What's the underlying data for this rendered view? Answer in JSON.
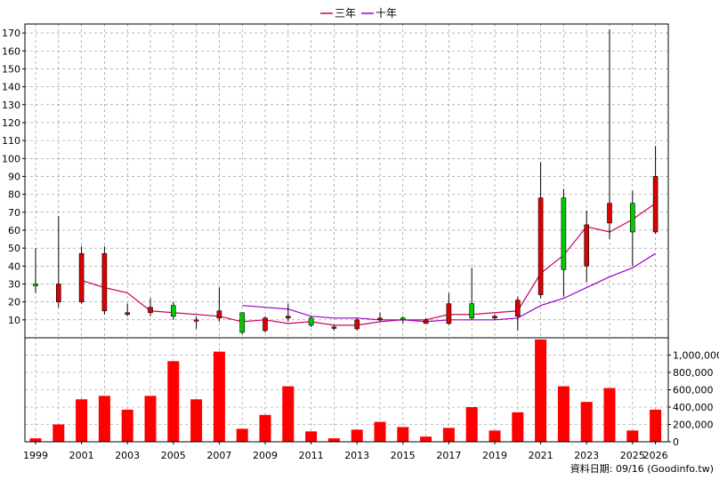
{
  "legend": {
    "items": [
      {
        "label": "三年",
        "color": "#cc0066"
      },
      {
        "label": "十年",
        "color": "#9900cc"
      }
    ]
  },
  "source_note": "資料日期: 09/16 (Goodinfo.tw)",
  "colors": {
    "up_candle": "#dd0000",
    "down_candle": "#00cc00",
    "volume_bar": "#ff0000",
    "grid": "#888888",
    "ma3": "#cc0066",
    "ma10": "#9900cc"
  },
  "chart_data": [
    {
      "type": "candlestick",
      "title": "",
      "xlabel": "",
      "ylabel": "",
      "ylim": [
        0,
        175
      ],
      "y_ticks": [
        10,
        20,
        30,
        40,
        50,
        60,
        70,
        80,
        90,
        100,
        110,
        120,
        130,
        140,
        150,
        160,
        170
      ],
      "grid": true,
      "legend_position": "top-center",
      "candles": [
        {
          "year": 1999,
          "open": 30,
          "close": 29,
          "high": 50,
          "low": 25
        },
        {
          "year": 2000,
          "open": 20,
          "close": 30,
          "high": 68,
          "low": 17
        },
        {
          "year": 2001,
          "open": 20,
          "close": 47,
          "high": 51,
          "low": 19
        },
        {
          "year": 2002,
          "open": 15,
          "close": 47,
          "high": 51,
          "low": 13
        },
        {
          "year": 2003,
          "open": 13,
          "close": 14,
          "high": 19,
          "low": 12
        },
        {
          "year": 2004,
          "open": 14,
          "close": 17,
          "high": 22,
          "low": 12
        },
        {
          "year": 2005,
          "open": 18,
          "close": 12,
          "high": 20,
          "low": 10
        },
        {
          "year": 2006,
          "open": 10,
          "close": 10,
          "high": 12,
          "low": 5
        },
        {
          "year": 2007,
          "open": 11,
          "close": 15,
          "high": 28,
          "low": 9
        },
        {
          "year": 2008,
          "open": 14,
          "close": 3,
          "high": 14,
          "low": 2
        },
        {
          "year": 2009,
          "open": 4,
          "close": 11,
          "high": 12,
          "low": 3
        },
        {
          "year": 2010,
          "open": 11,
          "close": 12,
          "high": 19,
          "low": 9
        },
        {
          "year": 2011,
          "open": 11,
          "close": 7,
          "high": 12,
          "low": 6
        },
        {
          "year": 2012,
          "open": 6,
          "close": 6,
          "high": 7,
          "low": 4
        },
        {
          "year": 2013,
          "open": 5,
          "close": 10,
          "high": 11,
          "low": 4
        },
        {
          "year": 2014,
          "open": 10,
          "close": 11,
          "high": 14,
          "low": 9
        },
        {
          "year": 2015,
          "open": 11,
          "close": 10,
          "high": 12,
          "low": 8
        },
        {
          "year": 2016,
          "open": 8,
          "close": 10,
          "high": 11,
          "low": 8
        },
        {
          "year": 2017,
          "open": 8,
          "close": 19,
          "high": 25,
          "low": 7
        },
        {
          "year": 2018,
          "open": 19,
          "close": 11,
          "high": 39,
          "low": 10
        },
        {
          "year": 2019,
          "open": 11,
          "close": 12,
          "high": 13,
          "low": 10
        },
        {
          "year": 2020,
          "open": 12,
          "close": 21,
          "high": 23,
          "low": 4
        },
        {
          "year": 2021,
          "open": 24,
          "close": 78,
          "high": 98,
          "low": 22
        },
        {
          "year": 2022,
          "open": 78,
          "close": 38,
          "high": 83,
          "low": 23
        },
        {
          "year": 2023,
          "open": 40,
          "close": 63,
          "high": 71,
          "low": 31
        },
        {
          "year": 2024,
          "open": 64,
          "close": 75,
          "high": 172,
          "low": 55
        },
        {
          "year": 2025,
          "open": 75,
          "close": 59,
          "high": 82,
          "low": 40
        },
        {
          "year": 2026,
          "open": 59,
          "close": 90,
          "high": 107,
          "low": 58
        }
      ],
      "ma_series": [
        {
          "name": "三年",
          "color": "#cc0066",
          "points": [
            {
              "year": 2001,
              "value": 32
            },
            {
              "year": 2002,
              "value": 28
            },
            {
              "year": 2003,
              "value": 25
            },
            {
              "year": 2004,
              "value": 15
            },
            {
              "year": 2005,
              "value": 14
            },
            {
              "year": 2006,
              "value": 13
            },
            {
              "year": 2007,
              "value": 12
            },
            {
              "year": 2008,
              "value": 9
            },
            {
              "year": 2009,
              "value": 10
            },
            {
              "year": 2010,
              "value": 8
            },
            {
              "year": 2011,
              "value": 9
            },
            {
              "year": 2012,
              "value": 7
            },
            {
              "year": 2013,
              "value": 7
            },
            {
              "year": 2014,
              "value": 9
            },
            {
              "year": 2015,
              "value": 10
            },
            {
              "year": 2016,
              "value": 10
            },
            {
              "year": 2017,
              "value": 13
            },
            {
              "year": 2018,
              "value": 13
            },
            {
              "year": 2019,
              "value": 14
            },
            {
              "year": 2020,
              "value": 15
            },
            {
              "year": 2021,
              "value": 36
            },
            {
              "year": 2022,
              "value": 46
            },
            {
              "year": 2023,
              "value": 62
            },
            {
              "year": 2024,
              "value": 59
            },
            {
              "year": 2025,
              "value": 66
            },
            {
              "year": 2026,
              "value": 75
            }
          ]
        },
        {
          "name": "十年",
          "color": "#9900cc",
          "points": [
            {
              "year": 2008,
              "value": 18
            },
            {
              "year": 2009,
              "value": 17
            },
            {
              "year": 2010,
              "value": 16
            },
            {
              "year": 2011,
              "value": 12
            },
            {
              "year": 2012,
              "value": 11
            },
            {
              "year": 2013,
              "value": 11
            },
            {
              "year": 2014,
              "value": 10
            },
            {
              "year": 2015,
              "value": 10
            },
            {
              "year": 2016,
              "value": 9
            },
            {
              "year": 2017,
              "value": 10
            },
            {
              "year": 2018,
              "value": 10
            },
            {
              "year": 2019,
              "value": 10
            },
            {
              "year": 2020,
              "value": 11
            },
            {
              "year": 2021,
              "value": 18
            },
            {
              "year": 2022,
              "value": 22
            },
            {
              "year": 2023,
              "value": 28
            },
            {
              "year": 2024,
              "value": 34
            },
            {
              "year": 2025,
              "value": 39
            },
            {
              "year": 2026,
              "value": 47
            }
          ]
        }
      ]
    },
    {
      "type": "bar",
      "title": "",
      "xlabel": "",
      "ylabel": "",
      "ylim": [
        0,
        1200000
      ],
      "y_ticks": [
        0,
        200000,
        400000,
        600000,
        800000,
        1000000
      ],
      "y_tick_labels": [
        "0",
        "200,000",
        "400,000",
        "600,000",
        "800,000",
        "1,000,000"
      ],
      "x_tick_labels": [
        "1999",
        "2001",
        "2003",
        "2005",
        "2007",
        "2009",
        "2011",
        "2013",
        "2015",
        "2017",
        "2019",
        "2021",
        "2023",
        "2025",
        "2026"
      ],
      "grid": true,
      "bars": [
        {
          "year": 1999,
          "value": 40000
        },
        {
          "year": 2000,
          "value": 200000
        },
        {
          "year": 2001,
          "value": 490000
        },
        {
          "year": 2002,
          "value": 530000
        },
        {
          "year": 2003,
          "value": 370000
        },
        {
          "year": 2004,
          "value": 530000
        },
        {
          "year": 2005,
          "value": 930000
        },
        {
          "year": 2006,
          "value": 490000
        },
        {
          "year": 2007,
          "value": 1040000
        },
        {
          "year": 2008,
          "value": 150000
        },
        {
          "year": 2009,
          "value": 310000
        },
        {
          "year": 2010,
          "value": 640000
        },
        {
          "year": 2011,
          "value": 120000
        },
        {
          "year": 2012,
          "value": 40000
        },
        {
          "year": 2013,
          "value": 140000
        },
        {
          "year": 2014,
          "value": 230000
        },
        {
          "year": 2015,
          "value": 170000
        },
        {
          "year": 2016,
          "value": 60000
        },
        {
          "year": 2017,
          "value": 160000
        },
        {
          "year": 2018,
          "value": 400000
        },
        {
          "year": 2019,
          "value": 130000
        },
        {
          "year": 2020,
          "value": 340000
        },
        {
          "year": 2021,
          "value": 1180000
        },
        {
          "year": 2022,
          "value": 640000
        },
        {
          "year": 2023,
          "value": 460000
        },
        {
          "year": 2024,
          "value": 620000
        },
        {
          "year": 2025,
          "value": 130000
        },
        {
          "year": 2026,
          "value": 370000
        }
      ]
    }
  ]
}
